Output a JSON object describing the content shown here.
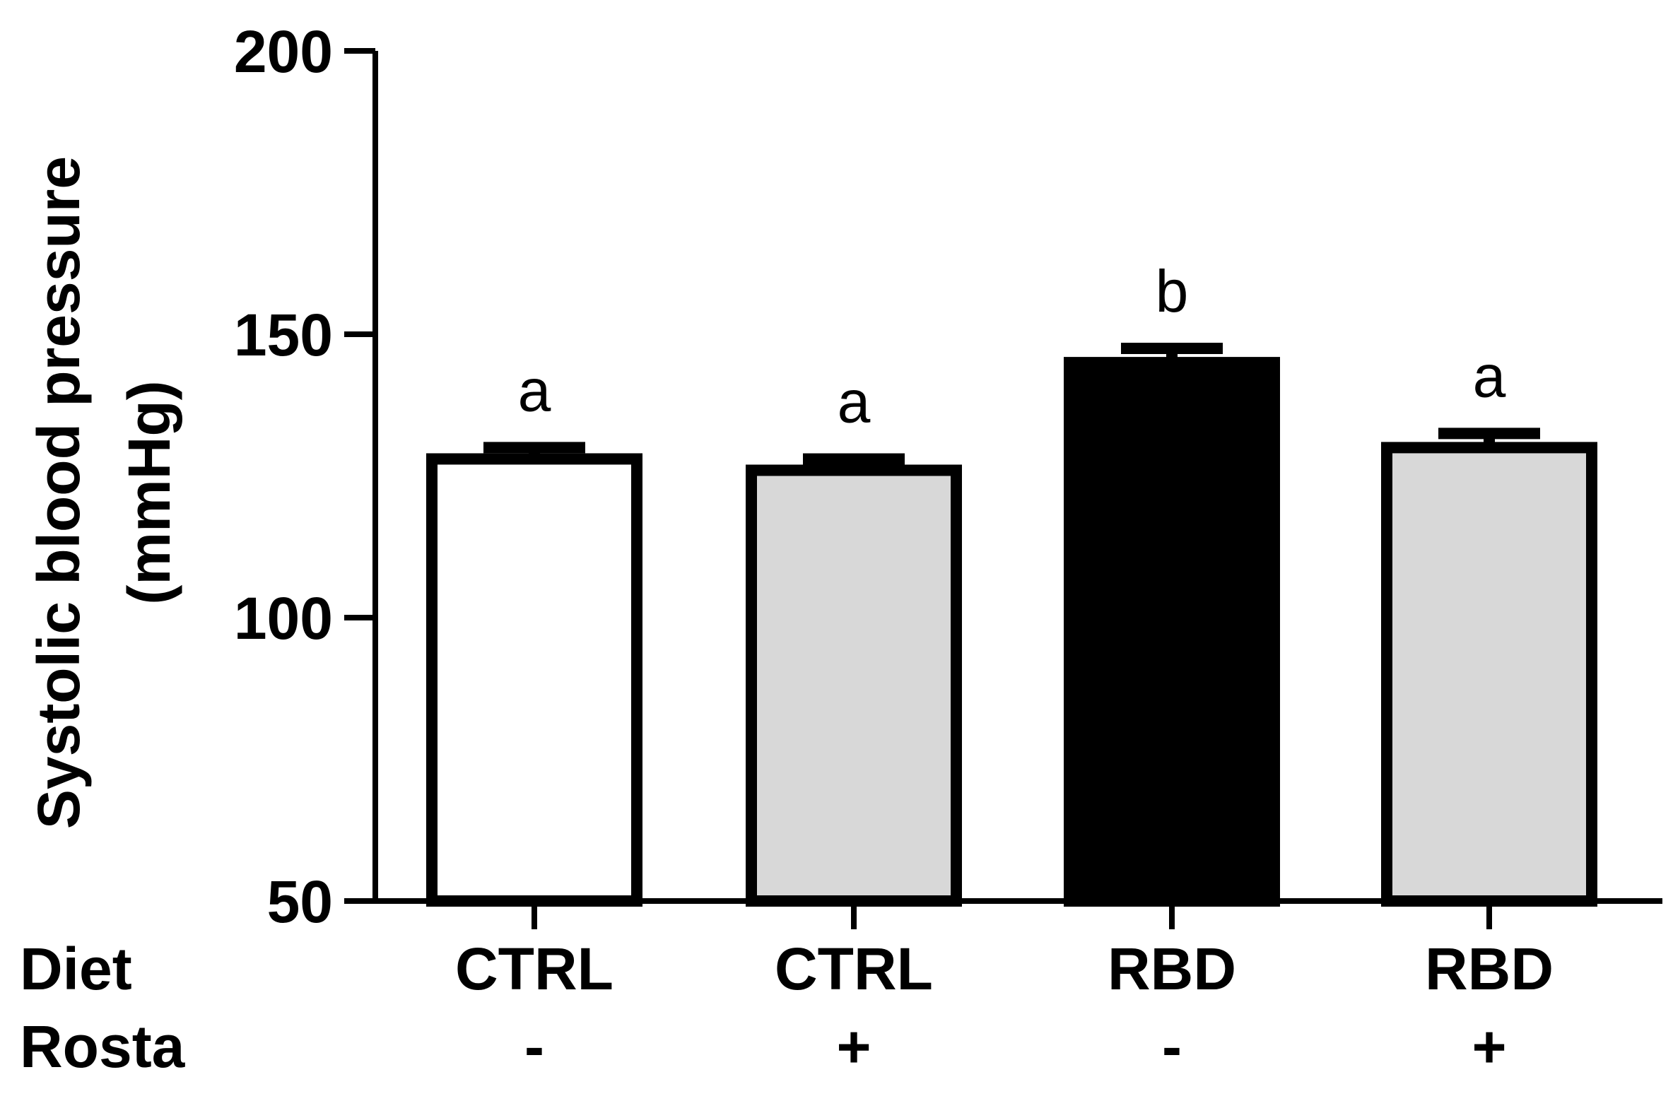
{
  "chart_data": {
    "type": "bar",
    "categories": [
      "CTRL -",
      "CTRL +",
      "RBD -",
      "RBD +"
    ],
    "ylabel_lines": [
      "Systolic blood pressure",
      "(mmHg)"
    ],
    "ylim": [
      50,
      200
    ],
    "yticks": [
      50,
      100,
      150,
      200
    ],
    "grid": false,
    "factor_rows": [
      {
        "label": "Diet",
        "values": [
          "CTRL",
          "CTRL",
          "RBD",
          "RBD"
        ]
      },
      {
        "label": "Rosta",
        "values": [
          "-",
          "+",
          "-",
          "+"
        ]
      }
    ],
    "bars": [
      {
        "value": 128,
        "error": 2,
        "color": "#ffffff",
        "significance": "a"
      },
      {
        "value": 126,
        "error": 2,
        "color": "#d8d8d8",
        "significance": "a"
      },
      {
        "value": 145,
        "error": 2.5,
        "color": "#000000",
        "significance": "b"
      },
      {
        "value": 130,
        "error": 2.5,
        "color": "#d8d8d8",
        "significance": "a"
      }
    ]
  }
}
